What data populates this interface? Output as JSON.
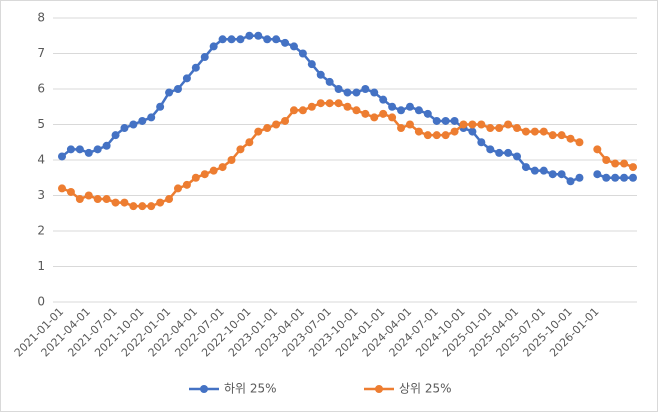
{
  "chart_data": {
    "type": "line",
    "categories": [
      "2021-01-01",
      null,
      null,
      "2021-04-01",
      null,
      null,
      "2021-07-01",
      null,
      null,
      "2021-10-01",
      null,
      null,
      "2022-01-01",
      null,
      null,
      "2022-04-01",
      null,
      null,
      "2022-07-01",
      null,
      null,
      "2022-10-01",
      null,
      null,
      "2023-01-01",
      null,
      null,
      "2023-04-01",
      null,
      null,
      "2023-07-01",
      null,
      null,
      "2023-10-01",
      null,
      null,
      "2024-01-01",
      null,
      null,
      "2024-04-01",
      null,
      null,
      "2024-07-01",
      null,
      null,
      "2024-10-01",
      null,
      null,
      "2025-01-01",
      null,
      null,
      "2025-04-01",
      null,
      null,
      "2025-07-01",
      null,
      null,
      "2025-10-01",
      null,
      null,
      "2026-01-01",
      null,
      null,
      null,
      null
    ],
    "series": [
      {
        "name": "하위 25%",
        "color": "#4472c4",
        "values": [
          4.1,
          4.3,
          4.3,
          4.2,
          4.3,
          4.4,
          4.7,
          4.9,
          5.0,
          5.1,
          5.2,
          5.5,
          5.9,
          6.0,
          6.3,
          6.6,
          6.9,
          7.2,
          7.4,
          7.4,
          7.4,
          7.5,
          7.5,
          7.4,
          7.4,
          7.3,
          7.2,
          7.0,
          6.7,
          6.4,
          6.2,
          6.0,
          5.9,
          5.9,
          6.0,
          5.9,
          5.7,
          5.5,
          5.4,
          5.5,
          5.4,
          5.3,
          5.1,
          5.1,
          5.1,
          4.9,
          4.8,
          4.5,
          4.3,
          4.2,
          4.2,
          4.1,
          3.8,
          3.7,
          3.7,
          3.6,
          3.6,
          3.4,
          3.5,
          null,
          3.6,
          3.5,
          3.5,
          3.5,
          3.5
        ]
      },
      {
        "name": "상위 25%",
        "color": "#ed7d31",
        "values": [
          3.2,
          3.1,
          2.9,
          3.0,
          2.9,
          2.9,
          2.8,
          2.8,
          2.7,
          2.7,
          2.7,
          2.8,
          2.9,
          3.2,
          3.3,
          3.5,
          3.6,
          3.7,
          3.8,
          4.0,
          4.3,
          4.5,
          4.8,
          4.9,
          5.0,
          5.1,
          5.4,
          5.4,
          5.5,
          5.6,
          5.6,
          5.6,
          5.5,
          5.4,
          5.3,
          5.2,
          5.3,
          5.2,
          4.9,
          5.0,
          4.8,
          4.7,
          4.7,
          4.7,
          4.8,
          5.0,
          5.0,
          5.0,
          4.9,
          4.9,
          5.0,
          4.9,
          4.8,
          4.8,
          4.8,
          4.7,
          4.7,
          4.6,
          4.5,
          null,
          4.3,
          4.0,
          3.9,
          3.9,
          3.8
        ]
      }
    ],
    "ylim": [
      0,
      8
    ],
    "yticks": [
      0,
      1,
      2,
      3,
      4,
      5,
      6,
      7,
      8
    ],
    "grid": true,
    "legend": "bottom"
  }
}
